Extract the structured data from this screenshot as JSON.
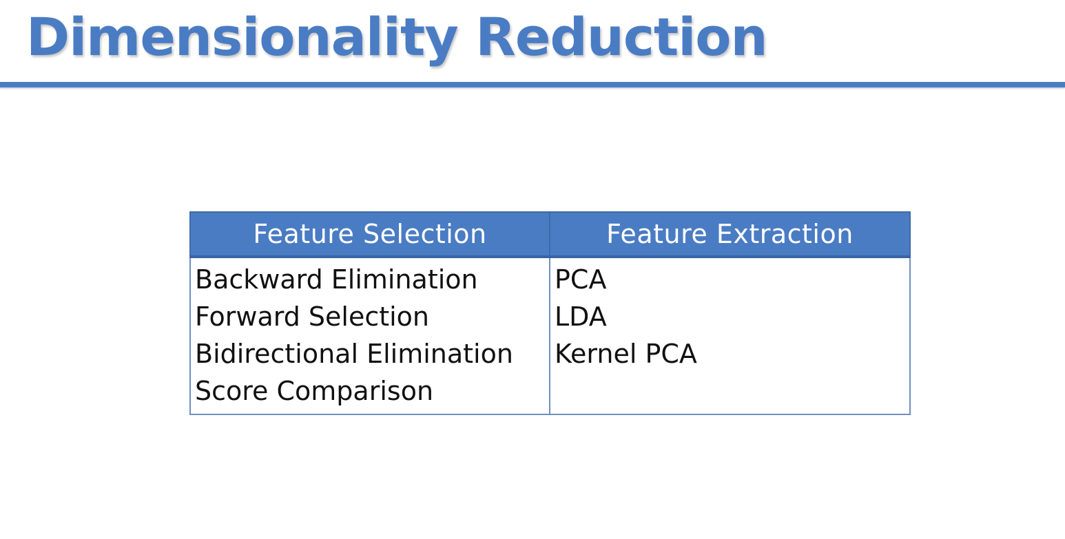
{
  "slide": {
    "title": "Dimensionality Reduction"
  },
  "table": {
    "headers": [
      "Feature Selection",
      "Feature Extraction"
    ],
    "columns": [
      [
        "Backward Elimination",
        "Forward Selection",
        "Bidirectional Elimination",
        "Score Comparison"
      ],
      [
        "PCA",
        "LDA",
        "Kernel PCA"
      ]
    ]
  },
  "colors": {
    "accent": "#4a7cc4",
    "border": "#6f8fc0",
    "text": "#111111"
  }
}
